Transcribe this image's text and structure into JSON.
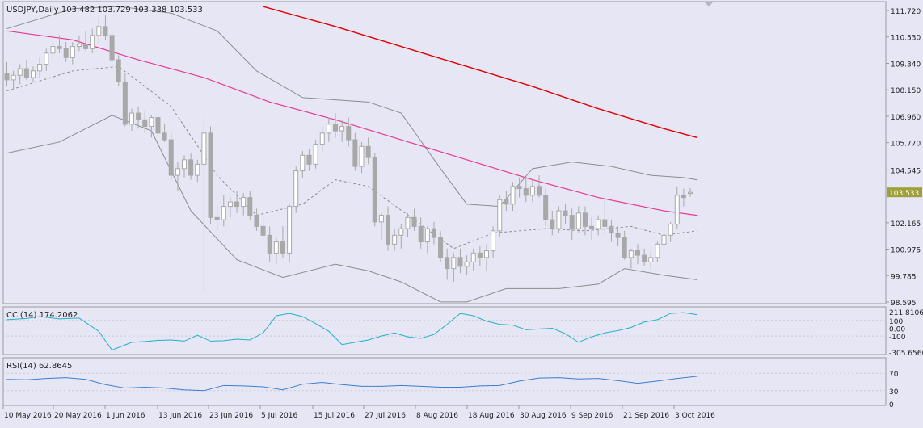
{
  "header": {
    "symbol_info": "USDJPY,Daily  103.482 103.729 103.338 103.533"
  },
  "colors": {
    "background": "#e6e6f5",
    "frame": "#9a9a9a",
    "candle_body": "#a8a8a8",
    "candle_up_fill": "#ffffff",
    "ma_fast": "#e8398f",
    "ma_slow": "#e00000",
    "bands": "#8c8c8c",
    "cci": "#20b2c8",
    "rsi": "#3a7fd0",
    "price_tag": "#9ea03a"
  },
  "chart_data": [
    {
      "type": "candlestick",
      "panel": "price",
      "title": "USDJPY,Daily  103.482 103.729 103.338 103.533",
      "ylim": [
        98.595,
        111.72
      ],
      "y_ticks": [
        "111.720",
        "110.530",
        "109.340",
        "108.150",
        "106.960",
        "105.770",
        "104.545",
        "103.533",
        "102.165",
        "100.975",
        "99.785",
        "98.595"
      ],
      "x_labels": [
        "10 May 2016",
        "20 May 2016",
        "1 Jun 2016",
        "13 Jun 2016",
        "23 Jun 2016",
        "5 Jul 2016",
        "15 Jul 2016",
        "27 Jul 2016",
        "8 Aug 2016",
        "18 Aug 2016",
        "30 Aug 2016",
        "9 Sep 2016",
        "21 Sep 2016",
        "3 Oct 2016"
      ],
      "last_price": "103.533",
      "candles": [
        [
          108.9,
          109.4,
          108.3,
          108.6
        ],
        [
          108.6,
          109.0,
          108.2,
          108.8
        ],
        [
          108.8,
          109.3,
          108.4,
          109.1
        ],
        [
          109.1,
          109.5,
          108.6,
          108.7
        ],
        [
          108.7,
          109.2,
          108.5,
          109.0
        ],
        [
          109.0,
          109.6,
          108.7,
          109.3
        ],
        [
          109.3,
          110.0,
          109.0,
          109.8
        ],
        [
          109.8,
          110.4,
          109.5,
          110.1
        ],
        [
          110.1,
          110.6,
          109.8,
          110.0
        ],
        [
          110.0,
          110.3,
          109.4,
          109.6
        ],
        [
          109.6,
          110.3,
          109.3,
          110.1
        ],
        [
          110.1,
          110.6,
          109.9,
          110.2
        ],
        [
          110.2,
          110.8,
          109.9,
          110.0
        ],
        [
          110.0,
          110.9,
          109.8,
          110.6
        ],
        [
          110.6,
          111.4,
          110.2,
          111.0
        ],
        [
          111.0,
          111.5,
          110.4,
          110.6
        ],
        [
          110.6,
          110.8,
          109.4,
          109.5
        ],
        [
          109.5,
          109.7,
          108.3,
          108.5
        ],
        [
          108.5,
          108.9,
          106.5,
          106.6
        ],
        [
          106.6,
          107.3,
          106.3,
          107.1
        ],
        [
          107.1,
          107.4,
          106.4,
          106.8
        ],
        [
          106.8,
          107.2,
          106.2,
          106.5
        ],
        [
          106.5,
          107.0,
          106.0,
          106.9
        ],
        [
          106.9,
          107.1,
          105.9,
          106.2
        ],
        [
          106.2,
          106.6,
          105.8,
          105.9
        ],
        [
          105.9,
          106.2,
          104.1,
          104.3
        ],
        [
          104.3,
          104.9,
          103.6,
          104.6
        ],
        [
          104.6,
          105.2,
          104.2,
          105.0
        ],
        [
          105.0,
          105.3,
          104.1,
          104.3
        ],
        [
          104.3,
          105.0,
          104.0,
          104.8
        ],
        [
          104.8,
          106.9,
          99.0,
          106.2
        ],
        [
          106.2,
          106.5,
          102.1,
          102.4
        ],
        [
          102.4,
          102.9,
          101.8,
          102.3
        ],
        [
          102.3,
          103.4,
          102.0,
          102.9
        ],
        [
          102.9,
          103.3,
          102.4,
          103.1
        ],
        [
          103.1,
          103.6,
          102.6,
          102.9
        ],
        [
          102.9,
          103.5,
          102.5,
          103.3
        ],
        [
          103.3,
          103.6,
          102.3,
          102.5
        ],
        [
          102.5,
          102.8,
          101.8,
          102.0
        ],
        [
          102.0,
          102.4,
          101.4,
          101.6
        ],
        [
          101.6,
          102.0,
          100.4,
          100.8
        ],
        [
          100.8,
          101.5,
          100.3,
          101.3
        ],
        [
          101.3,
          102.0,
          100.6,
          100.8
        ],
        [
          100.8,
          103.0,
          100.4,
          102.9
        ],
        [
          102.9,
          104.7,
          102.6,
          104.5
        ],
        [
          104.5,
          105.4,
          104.2,
          105.2
        ],
        [
          105.2,
          105.5,
          104.5,
          104.8
        ],
        [
          104.8,
          105.9,
          104.6,
          105.7
        ],
        [
          105.7,
          106.5,
          105.3,
          106.2
        ],
        [
          106.2,
          106.9,
          105.8,
          106.6
        ],
        [
          106.6,
          107.1,
          106.0,
          106.3
        ],
        [
          106.3,
          106.8,
          105.8,
          106.5
        ],
        [
          106.5,
          106.9,
          105.6,
          105.9
        ],
        [
          105.9,
          106.2,
          104.5,
          104.7
        ],
        [
          104.7,
          105.8,
          104.4,
          105.6
        ],
        [
          105.6,
          106.0,
          104.8,
          105.1
        ],
        [
          105.1,
          105.3,
          102.0,
          102.2
        ],
        [
          102.2,
          102.6,
          101.4,
          102.5
        ],
        [
          102.5,
          102.9,
          100.9,
          101.2
        ],
        [
          101.2,
          101.9,
          100.9,
          101.6
        ],
        [
          101.6,
          102.1,
          101.0,
          101.9
        ],
        [
          101.9,
          102.6,
          101.5,
          102.4
        ],
        [
          102.4,
          102.8,
          101.8,
          102.0
        ],
        [
          102.0,
          102.4,
          101.0,
          101.3
        ],
        [
          101.3,
          102.0,
          100.8,
          101.9
        ],
        [
          101.9,
          102.2,
          101.2,
          101.5
        ],
        [
          101.5,
          101.8,
          100.4,
          100.6
        ],
        [
          100.6,
          101.0,
          99.6,
          100.1
        ],
        [
          100.1,
          100.8,
          99.5,
          100.6
        ],
        [
          100.6,
          101.0,
          99.9,
          100.2
        ],
        [
          100.2,
          100.7,
          99.8,
          100.4
        ],
        [
          100.4,
          101.0,
          100.0,
          100.8
        ],
        [
          100.8,
          101.1,
          100.2,
          100.6
        ],
        [
          100.6,
          101.2,
          100.0,
          100.9
        ],
        [
          100.9,
          102.0,
          100.6,
          101.8
        ],
        [
          101.8,
          103.4,
          101.5,
          103.2
        ],
        [
          103.2,
          103.6,
          102.7,
          103.0
        ],
        [
          103.0,
          104.0,
          102.7,
          103.8
        ],
        [
          103.8,
          104.2,
          103.3,
          103.7
        ],
        [
          103.7,
          104.2,
          103.1,
          103.4
        ],
        [
          103.4,
          104.1,
          103.1,
          103.8
        ],
        [
          103.8,
          104.3,
          103.3,
          103.4
        ],
        [
          103.4,
          103.7,
          102.0,
          102.3
        ],
        [
          102.3,
          102.7,
          101.6,
          101.9
        ],
        [
          101.9,
          102.9,
          101.7,
          102.7
        ],
        [
          102.7,
          103.0,
          102.1,
          102.5
        ],
        [
          102.5,
          102.8,
          101.4,
          101.9
        ],
        [
          101.9,
          102.9,
          101.7,
          102.6
        ],
        [
          102.6,
          102.9,
          101.6,
          102.0
        ],
        [
          102.0,
          102.4,
          101.4,
          101.9
        ],
        [
          101.9,
          102.5,
          101.6,
          102.3
        ],
        [
          102.3,
          103.3,
          101.6,
          102.0
        ],
        [
          102.0,
          102.3,
          101.3,
          101.7
        ],
        [
          101.7,
          102.0,
          101.1,
          101.5
        ],
        [
          101.5,
          101.8,
          100.5,
          100.6
        ],
        [
          100.6,
          101.0,
          100.1,
          100.9
        ],
        [
          100.9,
          101.2,
          100.3,
          100.7
        ],
        [
          100.7,
          101.0,
          100.2,
          100.4
        ],
        [
          100.4,
          100.9,
          100.1,
          100.6
        ],
        [
          100.6,
          101.3,
          100.4,
          101.2
        ],
        [
          101.2,
          101.9,
          100.9,
          101.6
        ],
        [
          101.6,
          102.2,
          101.3,
          102.1
        ],
        [
          102.1,
          103.8,
          101.9,
          103.4
        ],
        [
          103.4,
          103.7,
          102.9,
          103.3
        ],
        [
          103.482,
          103.729,
          103.338,
          103.533
        ]
      ],
      "ma_fast": [
        [
          0,
          110.8
        ],
        [
          10,
          110.4
        ],
        [
          20,
          109.5
        ],
        [
          30,
          108.7
        ],
        [
          40,
          107.6
        ],
        [
          50,
          106.8
        ],
        [
          60,
          105.9
        ],
        [
          70,
          105.0
        ],
        [
          80,
          104.1
        ],
        [
          90,
          103.3
        ],
        [
          100,
          102.7
        ],
        [
          105,
          102.5
        ]
      ],
      "ma_slow": [
        [
          39,
          111.9
        ],
        [
          50,
          111.0
        ],
        [
          60,
          110.1
        ],
        [
          70,
          109.2
        ],
        [
          80,
          108.3
        ],
        [
          90,
          107.3
        ],
        [
          100,
          106.4
        ],
        [
          105,
          106.0
        ]
      ],
      "band_upper": [
        [
          0,
          110.9
        ],
        [
          10,
          111.8
        ],
        [
          17,
          111.9
        ],
        [
          25,
          111.6
        ],
        [
          32,
          110.8
        ],
        [
          38,
          109.0
        ],
        [
          45,
          107.8
        ],
        [
          50,
          107.7
        ],
        [
          55,
          107.6
        ],
        [
          60,
          107.1
        ],
        [
          66,
          104.6
        ],
        [
          70,
          103.0
        ],
        [
          75,
          102.9
        ],
        [
          80,
          104.6
        ],
        [
          86,
          104.9
        ],
        [
          92,
          104.7
        ],
        [
          98,
          104.3
        ],
        [
          103,
          104.2
        ],
        [
          105,
          104.1
        ]
      ],
      "band_lower": [
        [
          0,
          105.3
        ],
        [
          8,
          105.8
        ],
        [
          16,
          107.0
        ],
        [
          22,
          106.3
        ],
        [
          28,
          102.7
        ],
        [
          35,
          100.5
        ],
        [
          42,
          99.7
        ],
        [
          50,
          100.3
        ],
        [
          55,
          100.0
        ],
        [
          60,
          99.5
        ],
        [
          66,
          98.6
        ],
        [
          70,
          98.6
        ],
        [
          76,
          99.2
        ],
        [
          84,
          99.2
        ],
        [
          90,
          99.4
        ],
        [
          94,
          100.1
        ],
        [
          100,
          99.8
        ],
        [
          105,
          99.6
        ]
      ],
      "band_middle": [
        [
          0,
          108.1
        ],
        [
          10,
          109.0
        ],
        [
          17,
          109.2
        ],
        [
          25,
          107.4
        ],
        [
          32,
          104.3
        ],
        [
          38,
          102.5
        ],
        [
          45,
          103.0
        ],
        [
          50,
          104.1
        ],
        [
          55,
          103.8
        ],
        [
          62,
          102.3
        ],
        [
          68,
          101.0
        ],
        [
          74,
          101.7
        ],
        [
          82,
          101.9
        ],
        [
          88,
          101.8
        ],
        [
          95,
          102.0
        ],
        [
          100,
          101.6
        ],
        [
          105,
          101.8
        ]
      ]
    },
    {
      "type": "line",
      "panel": "cci",
      "title": "CCI(14) 174.2062",
      "ylim": [
        -305.6566,
        211.8106
      ],
      "y_ticks": [
        "211.8106",
        "100",
        "0.00",
        "-100",
        "-305.6566"
      ],
      "x": [
        0,
        3,
        5,
        8,
        11,
        14,
        16,
        19,
        21,
        23,
        25,
        27,
        29,
        31,
        33,
        35,
        37,
        39,
        41,
        43,
        45,
        47,
        49,
        51,
        53,
        55,
        57,
        59,
        61,
        63,
        65,
        67,
        69,
        71,
        73,
        75,
        77,
        79,
        81,
        83,
        85,
        87,
        89,
        91,
        93,
        95,
        97,
        99,
        101,
        103,
        105
      ],
      "values": [
        110,
        125,
        150,
        120,
        130,
        -40,
        -280,
        -180,
        -170,
        -155,
        -150,
        -165,
        -90,
        -165,
        -160,
        -140,
        -150,
        -60,
        160,
        190,
        150,
        60,
        -40,
        -210,
        -180,
        -150,
        -100,
        -60,
        -110,
        -130,
        -80,
        50,
        190,
        160,
        90,
        50,
        40,
        -20,
        -10,
        0,
        -70,
        -180,
        -110,
        -60,
        -30,
        10,
        80,
        110,
        190,
        200,
        174
      ]
    },
    {
      "type": "line",
      "panel": "rsi",
      "title": "RSI(14) 62.8645",
      "ylim": [
        0,
        100
      ],
      "y_ticks": [
        "70",
        "30",
        "0"
      ],
      "x": [
        0,
        3,
        6,
        9,
        12,
        15,
        18,
        21,
        24,
        27,
        30,
        33,
        36,
        39,
        42,
        45,
        48,
        51,
        54,
        57,
        60,
        63,
        66,
        69,
        72,
        75,
        78,
        81,
        84,
        87,
        90,
        93,
        96,
        99,
        102,
        105
      ],
      "values": [
        56,
        55,
        58,
        60,
        56,
        44,
        36,
        38,
        36,
        32,
        30,
        42,
        41,
        39,
        32,
        45,
        49,
        44,
        40,
        40,
        42,
        40,
        38,
        38,
        41,
        42,
        52,
        59,
        60,
        57,
        58,
        53,
        47,
        52,
        58,
        62.8645
      ]
    }
  ]
}
